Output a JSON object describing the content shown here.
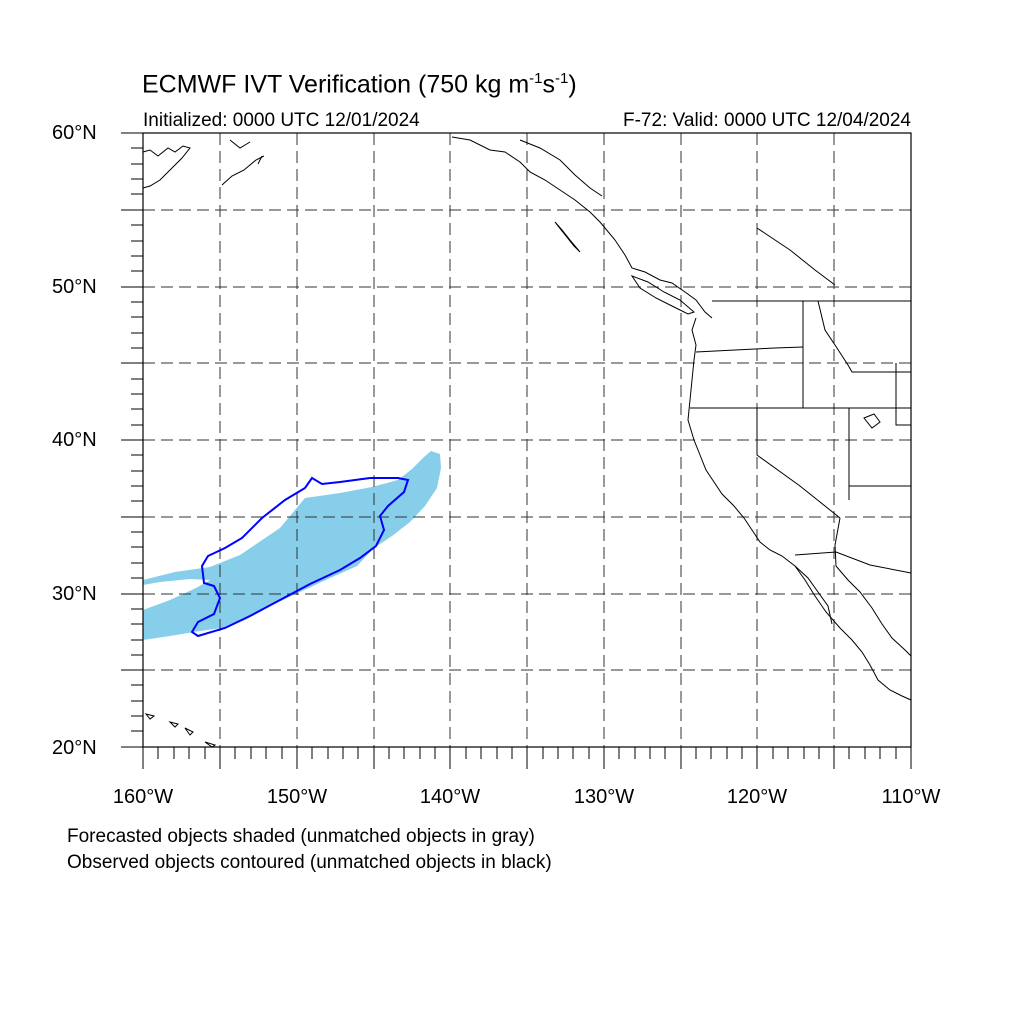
{
  "title": {
    "main": "ECMWF IVT Verification (750 kg m",
    "exp1": "-1",
    "mid": "s",
    "exp2": "-1",
    "end": ")"
  },
  "initialized": "Initialized: 0000 UTC 12/01/2024",
  "valid": "F-72: Valid: 0000 UTC 12/04/2024",
  "notes": {
    "forecast": "Forecasted objects shaded (unmatched objects in gray)",
    "observed": "Observed objects contoured (unmatched objects in black)"
  },
  "map": {
    "lon_range": [
      -160,
      -110
    ],
    "lat_range": [
      20,
      60
    ],
    "lat_labels": [
      "60°N",
      "50°N",
      "40°N",
      "30°N",
      "20°N"
    ],
    "lon_labels": [
      "160°W",
      "150°W",
      "140°W",
      "130°W",
      "120°W",
      "110°W"
    ],
    "forecast_fill_color": "#87ceeb",
    "observed_contour_color": "#0000ff",
    "coast_color": "#000000",
    "grid": "dashed every 5°"
  }
}
